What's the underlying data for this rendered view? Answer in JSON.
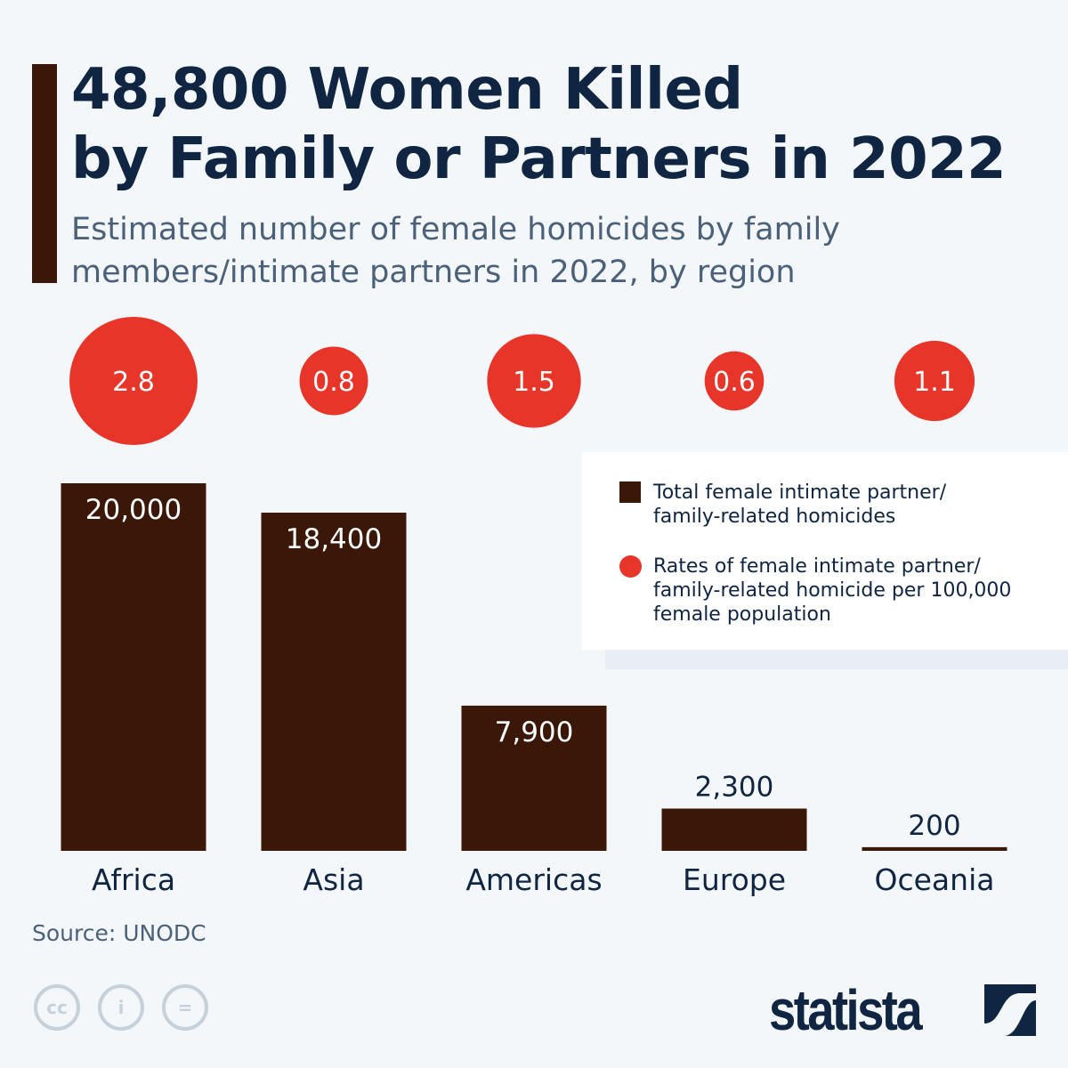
{
  "header": {
    "title_line1": "48,800 Women Killed",
    "title_line2": "by Family or Partners in 2022",
    "subtitle": "Estimated number of female homicides by family members/intimate partners in 2022, by region"
  },
  "legend": {
    "bars": "Total female intimate partner/ family-related homicides",
    "circles": "Rates of female intimate partner/ family-related homicide per 100,000 female population"
  },
  "footer": {
    "source": "Source: UNODC",
    "logo": "statista"
  },
  "colors": {
    "bar": "#3a1706",
    "circle": "#e8352a",
    "text": "#0f2542"
  },
  "chart_data": {
    "type": "bar",
    "title": "48,800 Women Killed by Family or Partners in 2022",
    "categories": [
      "Africa",
      "Asia",
      "Americas",
      "Europe",
      "Oceania"
    ],
    "series": [
      {
        "name": "Total female intimate partner/ family-related homicides",
        "values": [
          20000,
          18400,
          7900,
          2300,
          200
        ],
        "labels": [
          "20,000",
          "18,400",
          "7,900",
          "2,300",
          "200"
        ]
      },
      {
        "name": "Rates of female intimate partner/ family-related homicide per 100,000 female population",
        "values": [
          2.8,
          0.8,
          1.5,
          0.6,
          1.1
        ],
        "labels": [
          "2.8",
          "0.8",
          "1.5",
          "0.6",
          "1.1"
        ]
      }
    ],
    "ylim": [
      0,
      20000
    ],
    "grid": false,
    "legend_position": "right"
  }
}
